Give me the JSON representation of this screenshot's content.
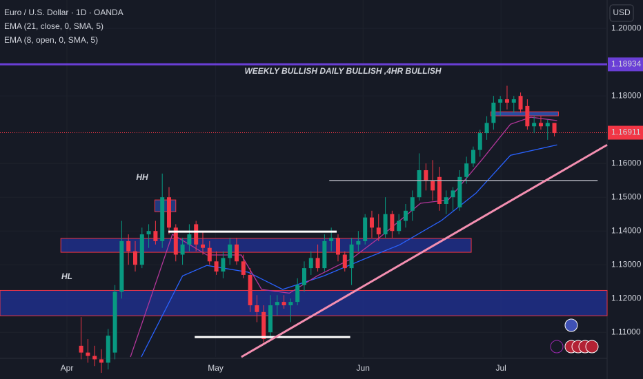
{
  "chart_data": {
    "type": "candlestick",
    "title": "Euro / U.S. Dollar · 1D · OANDA",
    "currency": "USD",
    "open": [
      1.106,
      1.104,
      1.103,
      1.102,
      1.101,
      1.104,
      1.122,
      1.137,
      1.134,
      1.13,
      1.139,
      1.14,
      1.137,
      1.15,
      1.141,
      1.133,
      1.136,
      1.142,
      1.136,
      1.135,
      1.131,
      1.128,
      1.132,
      1.136,
      1.131,
      1.127,
      1.118,
      1.116,
      1.11,
      1.118,
      1.119,
      1.118,
      1.119,
      1.124,
      1.129,
      1.132,
      1.129,
      1.137,
      1.138,
      1.133,
      1.129,
      1.136,
      1.137,
      1.144,
      1.141,
      1.139,
      1.145,
      1.14,
      1.143,
      1.146,
      1.15,
      1.158,
      1.155,
      1.156,
      1.148,
      1.15,
      1.147,
      1.156,
      1.16,
      1.164,
      1.169,
      1.172,
      1.178,
      1.179,
      1.178,
      1.18,
      1.177,
      1.171,
      1.172,
      1.171,
      1.172
    ],
    "high": [
      1.1145,
      1.108,
      1.106,
      1.105,
      1.111,
      1.124,
      1.143,
      1.139,
      1.137,
      1.141,
      1.142,
      1.143,
      1.157,
      1.153,
      1.142,
      1.138,
      1.142,
      1.143,
      1.14,
      1.137,
      1.134,
      1.134,
      1.138,
      1.138,
      1.133,
      1.129,
      1.121,
      1.118,
      1.121,
      1.121,
      1.121,
      1.12,
      1.126,
      1.131,
      1.134,
      1.136,
      1.139,
      1.141,
      1.139,
      1.134,
      1.138,
      1.14,
      1.145,
      1.146,
      1.145,
      1.15,
      1.146,
      1.145,
      1.148,
      1.152,
      1.163,
      1.16,
      1.161,
      1.159,
      1.152,
      1.153,
      1.158,
      1.162,
      1.165,
      1.17,
      1.174,
      1.18,
      1.18,
      1.183,
      1.18,
      1.181,
      1.179,
      1.174,
      1.174,
      1.173,
      1.172
    ],
    "low": [
      1.102,
      1.101,
      1.1,
      1.098,
      1.099,
      1.102,
      1.12,
      1.13,
      1.128,
      1.129,
      1.135,
      1.136,
      1.135,
      1.139,
      1.131,
      1.13,
      1.134,
      1.134,
      1.133,
      1.13,
      1.127,
      1.126,
      1.13,
      1.13,
      1.126,
      1.116,
      1.113,
      1.107,
      1.108,
      1.115,
      1.117,
      1.113,
      1.118,
      1.122,
      1.127,
      1.128,
      1.128,
      1.134,
      1.131,
      1.128,
      1.124,
      1.134,
      1.136,
      1.138,
      1.137,
      1.138,
      1.138,
      1.139,
      1.141,
      1.143,
      1.149,
      1.152,
      1.149,
      1.146,
      1.145,
      1.146,
      1.146,
      1.154,
      1.159,
      1.162,
      1.167,
      1.17,
      1.174,
      1.176,
      1.175,
      1.175,
      1.17,
      1.169,
      1.17,
      1.167,
      1.168
    ],
    "close": [
      1.104,
      1.103,
      1.102,
      1.101,
      1.109,
      1.122,
      1.137,
      1.134,
      1.13,
      1.139,
      1.14,
      1.137,
      1.15,
      1.141,
      1.133,
      1.136,
      1.139,
      1.136,
      1.135,
      1.131,
      1.128,
      1.132,
      1.136,
      1.131,
      1.127,
      1.118,
      1.116,
      1.108,
      1.118,
      1.119,
      1.118,
      1.119,
      1.124,
      1.129,
      1.132,
      1.129,
      1.137,
      1.138,
      1.133,
      1.129,
      1.136,
      1.137,
      1.144,
      1.141,
      1.139,
      1.145,
      1.14,
      1.143,
      1.146,
      1.15,
      1.158,
      1.155,
      1.152,
      1.148,
      1.15,
      1.152,
      1.156,
      1.16,
      1.164,
      1.169,
      1.172,
      1.178,
      1.179,
      1.178,
      1.179,
      1.176,
      1.171,
      1.172,
      1.171,
      1.172,
      1.169
    ],
    "up_color": "#089981",
    "down_color": "#f23645",
    "series": [
      {
        "name": "EMA (21, close, 0, SMA, 5)",
        "color": "#2962ff",
        "x": [
          8.9,
          15.0,
          18.6,
          24.7,
          29.8,
          35.9,
          42.0,
          47.1,
          53.3,
          58.4,
          63.5,
          70.4
        ],
        "values": [
          1.1027,
          1.1267,
          1.1298,
          1.1278,
          1.1227,
          1.1267,
          1.1318,
          1.1359,
          1.1431,
          1.1512,
          1.1624,
          1.1655
        ]
      },
      {
        "name": "EMA (8, open, 0, SMA, 5)",
        "color": "#b2369a",
        "x": [
          7.3,
          13.5,
          18.6,
          23.7,
          26.7,
          30.8,
          34.9,
          40.0,
          44.1,
          50.2,
          54.3,
          59.4,
          63.5,
          66.5,
          70.4
        ],
        "values": [
          1.1027,
          1.139,
          1.1329,
          1.1329,
          1.1227,
          1.1216,
          1.1267,
          1.1318,
          1.138,
          1.1482,
          1.1492,
          1.1614,
          1.1716,
          1.1737,
          1.1727
        ]
      }
    ],
    "xlim": [
      -12,
      77.8
    ],
    "xticks": [
      {
        "value": -2.1,
        "label": "Apr"
      },
      {
        "value": 19.9,
        "label": "May"
      },
      {
        "value": 41.7,
        "label": "Jun"
      },
      {
        "value": 62.1,
        "label": "Jul"
      }
    ],
    "ylim": [
      1.1027,
      1.2084
    ],
    "yticks": [
      {
        "value": 1.11,
        "label": "1.11000"
      },
      {
        "value": 1.12,
        "label": "1.12000"
      },
      {
        "value": 1.13,
        "label": "1.13000"
      },
      {
        "value": 1.14,
        "label": "1.14000"
      },
      {
        "value": 1.15,
        "label": "1.15000"
      },
      {
        "value": 1.16,
        "label": "1.16000"
      },
      {
        "value": 1.18,
        "label": "1.18000"
      },
      {
        "value": 1.2,
        "label": "1.20000"
      }
    ],
    "price_lines": [
      {
        "value": 1.18934,
        "label": "1.18934",
        "color": "#6a3fd6"
      },
      {
        "value": 1.16911,
        "label": "1.16911",
        "color": "#f23645"
      }
    ],
    "zones": [
      {
        "top": 1.1224,
        "bottom": 1.1149,
        "x": [
          -12,
          77.8
        ],
        "color": "#1e2f8a"
      },
      {
        "top": 1.1378,
        "bottom": 1.1337,
        "x": [
          -3.0,
          57.7
        ],
        "color": "#1e2f8a"
      },
      {
        "top": 1.1492,
        "bottom": 1.1457,
        "x": [
          10.9,
          14.0
        ],
        "color": "#24418f"
      },
      {
        "top": 1.1753,
        "bottom": 1.1741,
        "x": [
          60.6,
          70.6
        ],
        "color": "#2a56b8"
      }
    ],
    "segments": [
      {
        "x": [
          12.9,
          37.8
        ],
        "y": [
          1.1398,
          1.1398
        ],
        "color": "#ffffff"
      },
      {
        "x": [
          16.8,
          39.8
        ],
        "y": [
          1.1086,
          1.1086
        ],
        "color": "#ffffff"
      },
      {
        "x": [
          36.7,
          76.4
        ],
        "y": [
          1.1549,
          1.1549
        ],
        "color": "#b2b5be"
      },
      {
        "x": [
          23.7,
          77.8
        ],
        "y": [
          1.1027,
          1.1655
        ],
        "color": "#f48fb1"
      }
    ],
    "annotations": [
      "WEEKLY BULLISH DAILY BULLISH ,4HR BULLISH",
      "HH",
      "HL"
    ]
  }
}
